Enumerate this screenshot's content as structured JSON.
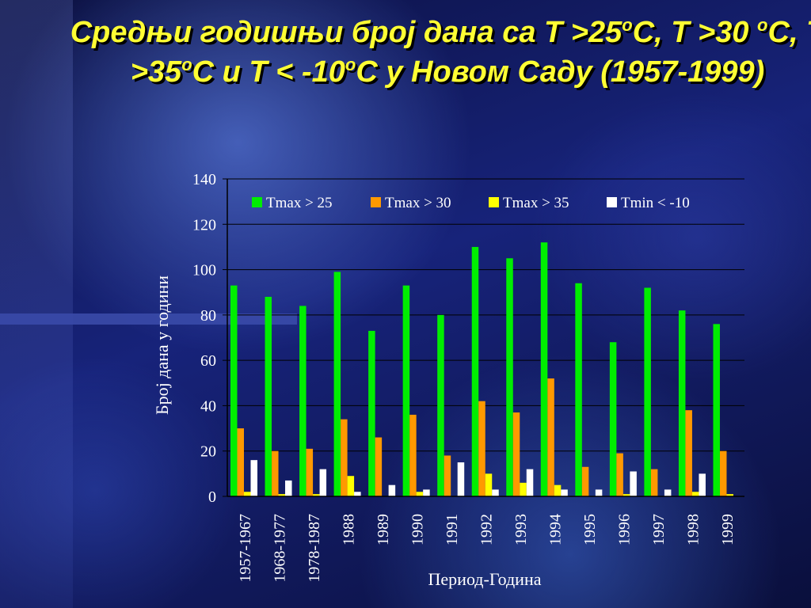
{
  "title": {
    "part1": "Средњи годишњи број дана са T >25",
    "sup1": "o",
    "part2": "C, T >30 ",
    "sup2": "o",
    "part3": "C, T >35",
    "sup3": "o",
    "part4": "C и T < -10",
    "sup4": "o",
    "part5": "C у Новом Саду (1957-1999)"
  },
  "colors": {
    "tmax25": "#00ee00",
    "tmax30": "#ff9900",
    "tmax35": "#ffff00",
    "tmin10": "#ffffff",
    "text": "#ffffff",
    "title": "#ffff33"
  },
  "chart_data": {
    "type": "bar",
    "xlabel": "Период-Година",
    "ylabel": "Број дана у години",
    "ylim": [
      0,
      140
    ],
    "yticks": [
      0,
      20,
      40,
      60,
      80,
      100,
      120,
      140
    ],
    "grid": true,
    "legend_position": "top",
    "categories": [
      "1957-1967",
      "1968-1977",
      "1978-1987",
      "1988",
      "1989",
      "1990",
      "1991",
      "1992",
      "1993",
      "1994",
      "1995",
      "1996",
      "1997",
      "1998",
      "1999"
    ],
    "series": [
      {
        "name": "Tmax > 25",
        "color_key": "tmax25",
        "values": [
          93,
          88,
          84,
          99,
          73,
          93,
          80,
          110,
          105,
          112,
          94,
          68,
          92,
          82,
          76
        ]
      },
      {
        "name": "Tmax > 30",
        "color_key": "tmax30",
        "values": [
          30,
          20,
          21,
          34,
          26,
          36,
          18,
          42,
          37,
          52,
          13,
          19,
          12,
          38,
          20
        ]
      },
      {
        "name": "Tmax > 35",
        "color_key": "tmax35",
        "values": [
          2,
          1,
          1,
          9,
          0,
          2,
          0,
          10,
          6,
          5,
          0,
          1,
          0,
          2,
          1
        ]
      },
      {
        "name": "Tmin < -10",
        "color_key": "tmin10",
        "values": [
          16,
          7,
          12,
          2,
          5,
          3,
          15,
          3,
          12,
          3,
          3,
          11,
          3,
          10,
          0
        ]
      }
    ]
  }
}
